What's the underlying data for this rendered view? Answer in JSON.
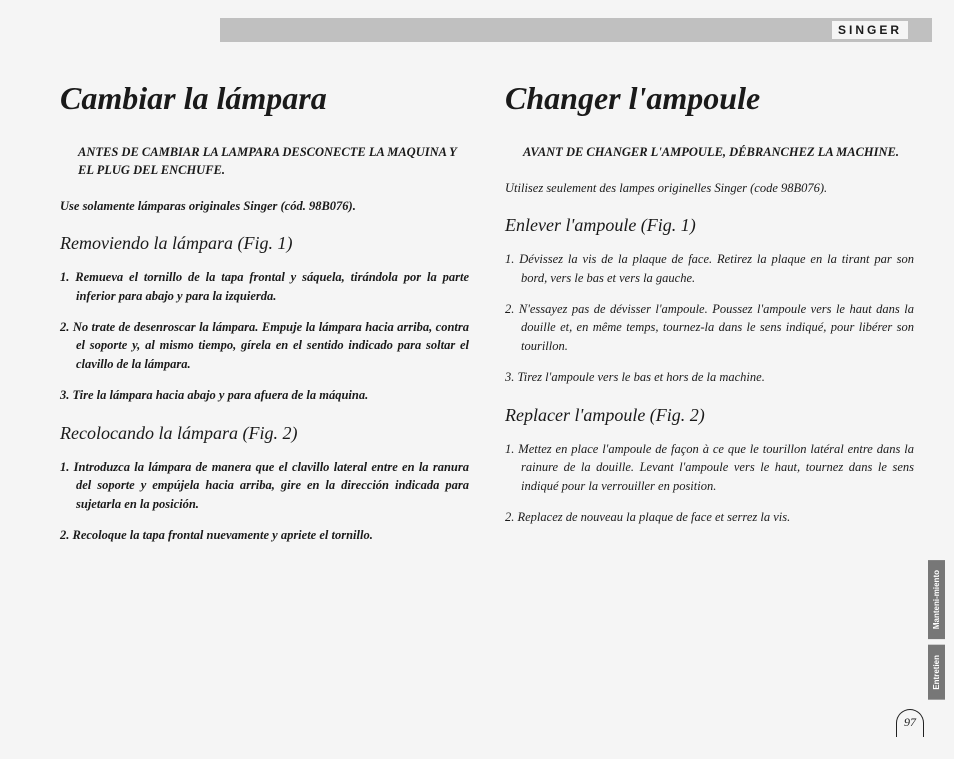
{
  "brand": "SINGER",
  "page_number": "97",
  "left": {
    "title": "Cambiar la lámpara",
    "warning": "ANTES DE CAMBIAR LA LAMPARA DESCONECTE LA MAQUINA Y EL PLUG DEL ENCHUFE.",
    "note": "Use solamente lámparas originales Singer (cód. 98B076).",
    "h2a": "Removiendo la lámpara (Fig. 1)",
    "list_a": [
      "Remueva el tornillo de la tapa frontal y sáquela, tirándola por la parte inferior para abajo y para la izquierda.",
      "No trate de desenroscar la lámpara. Empuje la lámpara hacia arriba, contra el soporte y, al mismo tiempo, gírela en el sentido indicado para soltar el clavillo de la lámpara.",
      "Tire la lámpara hacia abajo y para afuera de la máquina."
    ],
    "h2b": "Recolocando la lámpara (Fig. 2)",
    "list_b": [
      "Introduzca la lámpara de manera que el clavillo lateral entre en la ranura del soporte y empújela hacia arriba, gire en la dirección indicada para sujetarla en la posición.",
      "Recoloque la tapa frontal nuevamente y apriete el tornillo."
    ]
  },
  "right": {
    "title": "Changer l'ampoule",
    "warning": "AVANT DE CHANGER L'AMPOULE, DÉBRANCHEZ LA MACHINE.",
    "note": "Utilisez seulement des lampes originelles Singer (code 98B076).",
    "h2a": "Enlever l'ampoule (Fig. 1)",
    "list_a": [
      "Dévissez la vis de la plaque de face. Retirez la plaque en la tirant par son bord, vers le bas et vers la gauche.",
      "N'essayez pas de dévisser l'ampoule. Poussez l'ampoule vers le haut dans la douille et, en même temps, tournez-la dans le sens indiqué, pour libérer son tourillon.",
      "Tirez l'ampoule vers le bas et hors de la machine."
    ],
    "h2b": "Replacer l'ampoule (Fig. 2)",
    "list_b": [
      "Mettez en place l'ampoule de façon à ce que le tourillon latéral entre dans la rainure de la douille. Levant l'ampoule vers le haut, tournez dans le sens indiqué pour la verrouiller en position.",
      "Replacez de nouveau la plaque de face et serrez la vis."
    ]
  },
  "tabs": [
    "Manteni-miento",
    "Entretien"
  ],
  "colors": {
    "topbar": "#c0c0c0",
    "tab_bg": "#777777",
    "text": "#1a1a1a",
    "page_bg": "#f5f5f5"
  }
}
